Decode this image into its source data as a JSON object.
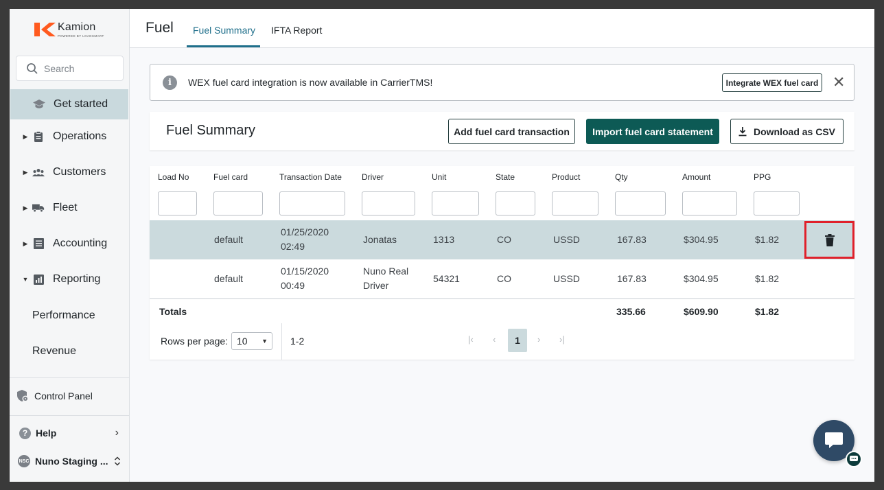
{
  "brand": {
    "name": "Kamion",
    "tagline": "POWERED BY LOADSMART",
    "accent": "#ff5a1f"
  },
  "search": {
    "placeholder": "Search"
  },
  "sidebar": {
    "get_started": "Get started",
    "items": [
      {
        "label": "Operations",
        "icon": "clipboard-icon"
      },
      {
        "label": "Customers",
        "icon": "people-icon"
      },
      {
        "label": "Fleet",
        "icon": "truck-icon"
      },
      {
        "label": "Accounting",
        "icon": "ledger-icon"
      },
      {
        "label": "Reporting",
        "icon": "chart-icon"
      }
    ],
    "reporting_sub": [
      "Performance",
      "Revenue"
    ],
    "control_panel": "Control Panel",
    "help": "Help",
    "user": {
      "initials": "NSC",
      "name": "Nuno Staging ..."
    }
  },
  "header": {
    "title": "Fuel",
    "tabs": [
      {
        "label": "Fuel Summary",
        "active": true
      },
      {
        "label": "IFTA Report",
        "active": false
      }
    ]
  },
  "banner": {
    "text": "WEX fuel card integration is now available in CarrierTMS!",
    "button": "Integrate WEX fuel card",
    "close": "✕"
  },
  "summary": {
    "title": "Fuel Summary",
    "add_button": "Add fuel card transaction",
    "import_button": "Import fuel card statement",
    "download_button": "Download as CSV"
  },
  "table": {
    "columns": [
      "Load No",
      "Fuel card",
      "Transaction Date",
      "Driver",
      "Unit",
      "State",
      "Product",
      "Qty",
      "Amount",
      "PPG"
    ],
    "rows": [
      {
        "load_no": "",
        "fuel_card": "default",
        "date_line1": "01/25/2020",
        "date_line2": "02:49",
        "driver_line1": "Jonatas",
        "driver_line2": "",
        "unit": "1313",
        "state": "CO",
        "product": "USSD",
        "qty": "167.83",
        "amount": "$304.95",
        "ppg": "$1.82"
      },
      {
        "load_no": "",
        "fuel_card": "default",
        "date_line1": "01/15/2020",
        "date_line2": "00:49",
        "driver_line1": "Nuno Real",
        "driver_line2": "Driver",
        "unit": "54321",
        "state": "CO",
        "product": "USSD",
        "qty": "167.83",
        "amount": "$304.95",
        "ppg": "$1.82"
      }
    ],
    "totals": {
      "label": "Totals",
      "qty": "335.66",
      "amount": "$609.90",
      "ppg": "$1.82"
    },
    "footer": {
      "rows_per_page_label": "Rows per page:",
      "rows_per_page": "10",
      "range": "1-2",
      "current_page": "1"
    }
  }
}
